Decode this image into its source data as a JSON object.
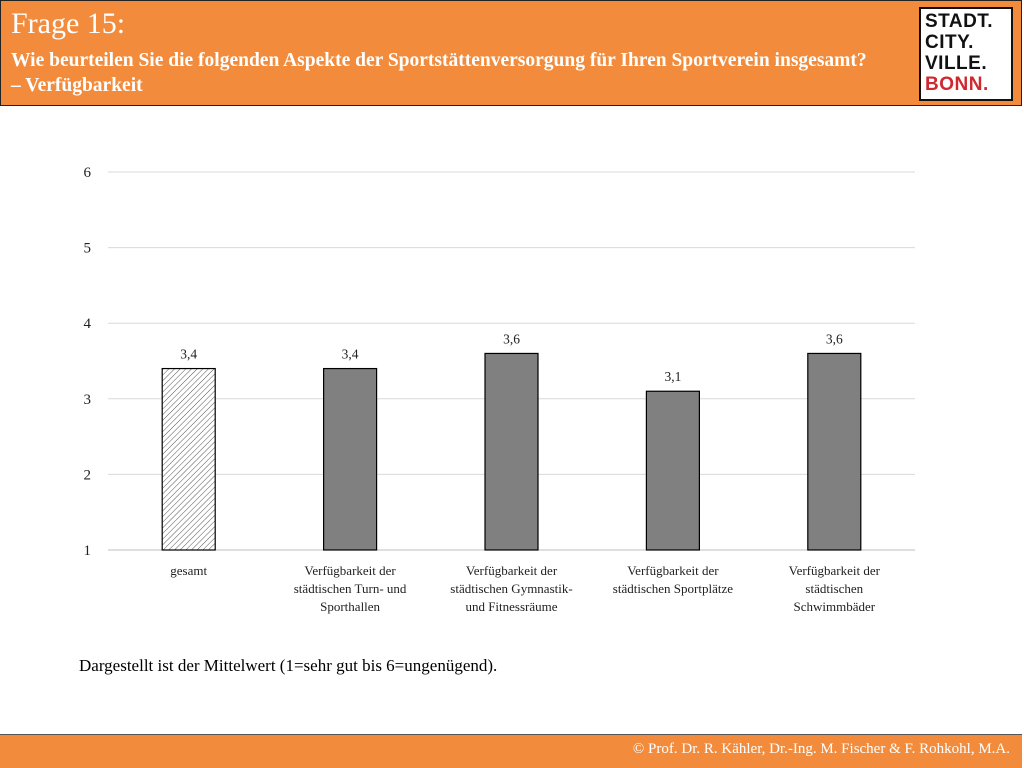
{
  "header": {
    "question_number": "Frage 15:",
    "question_text": "Wie beurteilen Sie die folgenden Aspekte der Sportstättenversorgung für Ihren Sportverein insgesamt? – Verfügbarkeit"
  },
  "logo": {
    "lines": [
      "STADT.",
      "CITY.",
      "VILLE.",
      "BONN."
    ]
  },
  "chart_data": {
    "type": "bar",
    "title": "",
    "xlabel": "",
    "ylabel": "",
    "ylim": [
      1,
      6
    ],
    "yticks": [
      1,
      2,
      3,
      4,
      5,
      6
    ],
    "grid": true,
    "categories": [
      [
        "gesamt"
      ],
      [
        "Verfügbarkeit der",
        "städtischen Turn- und",
        "Sporthallen"
      ],
      [
        "Verfügbarkeit der",
        "städtischen Gymnastik-",
        "und Fitnessräume"
      ],
      [
        "Verfügbarkeit der",
        "städtischen Sportplätze"
      ],
      [
        "Verfügbarkeit der",
        "städtischen",
        "Schwimmbäder"
      ]
    ],
    "values": [
      3.4,
      3.4,
      3.6,
      3.1,
      3.6
    ],
    "value_labels": [
      "3,4",
      "3,4",
      "3,6",
      "3,1",
      "3,6"
    ],
    "bar_styles": [
      "hatched",
      "solid",
      "solid",
      "solid",
      "solid"
    ]
  },
  "note": "Dargestellt ist der Mittelwert (1=sehr gut bis 6=ungenügend).",
  "footer": {
    "copyright": "© Prof. Dr. R. Kähler, Dr.-Ing. M. Fischer & F. Rohkohl, M.A."
  },
  "colors": {
    "accent": "#f28c3c",
    "bar": "#808080",
    "grid": "#d9d9d9"
  }
}
